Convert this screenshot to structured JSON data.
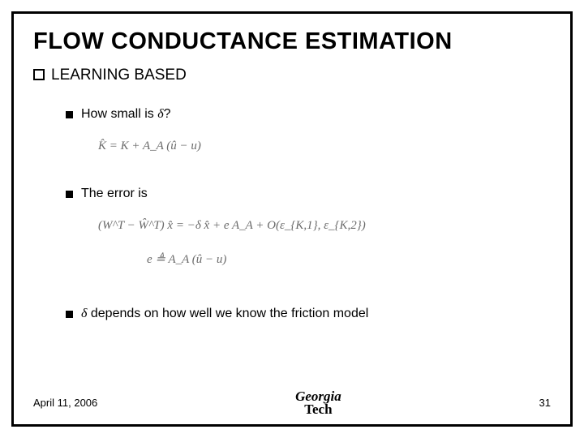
{
  "slide": {
    "title": "FLOW CONDUCTANCE ESTIMATION",
    "section_label": "LEARNING BASED",
    "bullets": {
      "b1_prefix": "How small is ",
      "b1_delta": "δ",
      "b1_suffix": "?",
      "b2": "The error is",
      "b3_delta": "δ",
      "b3_rest": " depends on how well we know the friction model"
    },
    "footer": {
      "date": "April 11, 2006",
      "logo_top": "Georgia",
      "logo_bot": "Tech",
      "page": "31"
    },
    "style": {
      "border_color": "#000000",
      "bg": "#ffffff",
      "title_fontsize": 29,
      "section_fontsize": 19,
      "bullet_fontsize": 16,
      "footer_fontsize": 13,
      "eq_color": "#6b6b6b"
    },
    "equations": {
      "eq1": {
        "text": "K̂ = K + A_A (û − u)",
        "fontsize": 15
      },
      "eq2": {
        "text": "(W^T − Ŵ^T) x̂ = −δ x̂ + e A_A + O(ε_{K,1}, ε_{K,2})",
        "fontsize": 15
      },
      "eq3": {
        "text": "e ≜ A_A (û − u)",
        "fontsize": 15
      }
    }
  }
}
